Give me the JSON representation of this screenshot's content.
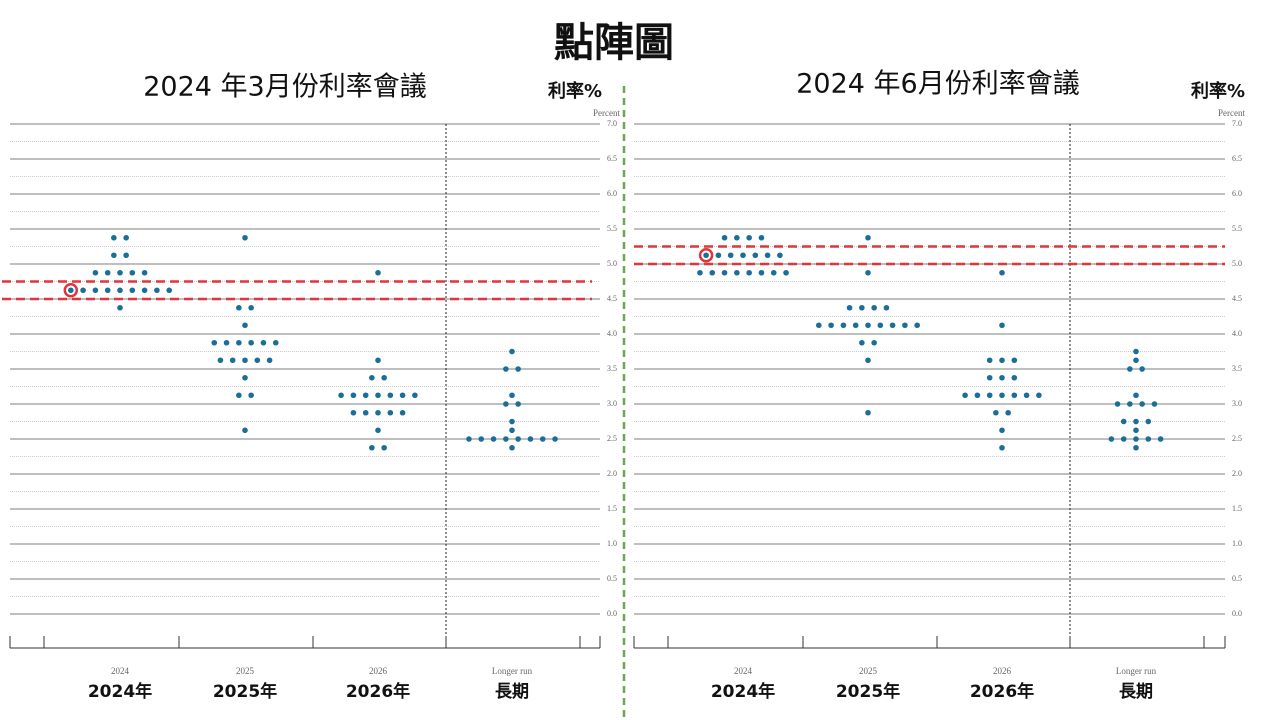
{
  "title": "點陣圖",
  "chart_data": [
    {
      "type": "dot",
      "title": "2024 年3月份利率會議",
      "ylabel": "利率%",
      "axis_label": "Percent",
      "categories": [
        "2024",
        "2025",
        "2026",
        "Longer run"
      ],
      "categories_zh": [
        "2024年",
        "2025年",
        "2026年",
        "長期"
      ],
      "color": "#1b6e98",
      "dots": [
        [
          5.375,
          5.375,
          5.125,
          5.125,
          4.875,
          4.875,
          4.875,
          4.875,
          4.875,
          4.625,
          4.625,
          4.625,
          4.625,
          4.625,
          4.625,
          4.625,
          4.625,
          4.625,
          4.375
        ],
        [
          5.375,
          4.375,
          4.375,
          4.125,
          3.875,
          3.875,
          3.875,
          3.875,
          3.875,
          3.875,
          3.625,
          3.625,
          3.625,
          3.625,
          3.625,
          3.375,
          3.125,
          3.125,
          2.625
        ],
        [
          4.875,
          3.625,
          3.375,
          3.375,
          3.125,
          3.125,
          3.125,
          3.125,
          3.125,
          3.125,
          3.125,
          2.875,
          2.875,
          2.875,
          2.875,
          2.875,
          2.625,
          2.375,
          2.375
        ],
        [
          3.75,
          3.5,
          3.5,
          3.125,
          3.0,
          3.0,
          2.75,
          2.625,
          2.5,
          2.5,
          2.5,
          2.5,
          2.5,
          2.5,
          2.5,
          2.5,
          2.375
        ]
      ],
      "highlight": {
        "category": 0,
        "value": 4.625
      },
      "reference_lines": [
        4.75,
        4.5
      ],
      "ylim": [
        0,
        7
      ],
      "yticks": [
        {
          "value": 0,
          "label": "0.0"
        },
        {
          "value": 0.5,
          "label": "0.5"
        },
        {
          "value": 1,
          "label": "1.0"
        },
        {
          "value": 1.5,
          "label": "1.5"
        },
        {
          "value": 2,
          "label": "2.0"
        },
        {
          "value": 2.5,
          "label": "2.5"
        },
        {
          "value": 3,
          "label": "3.0"
        },
        {
          "value": 3.5,
          "label": "3.5"
        },
        {
          "value": 4,
          "label": "4.0"
        },
        {
          "value": 4.5,
          "label": "4.5"
        },
        {
          "value": 5,
          "label": "5.0"
        },
        {
          "value": 5.5,
          "label": "5.5"
        },
        {
          "value": 6,
          "label": "6.0"
        },
        {
          "value": 6.5,
          "label": "6.5"
        },
        {
          "value": 7,
          "label": "7.0"
        }
      ],
      "grid": true
    },
    {
      "type": "dot",
      "title": "2024 年6月份利率會議",
      "ylabel": "利率%",
      "axis_label": "Percent",
      "categories": [
        "2024",
        "2025",
        "2026",
        "Longer run"
      ],
      "categories_zh": [
        "2024年",
        "2025年",
        "2026年",
        "長期"
      ],
      "color": "#1b6e98",
      "dots": [
        [
          5.375,
          5.375,
          5.375,
          5.375,
          5.125,
          5.125,
          5.125,
          5.125,
          5.125,
          5.125,
          5.125,
          4.875,
          4.875,
          4.875,
          4.875,
          4.875,
          4.875,
          4.875,
          4.875
        ],
        [
          5.375,
          4.875,
          4.375,
          4.375,
          4.375,
          4.375,
          4.125,
          4.125,
          4.125,
          4.125,
          4.125,
          4.125,
          4.125,
          4.125,
          4.125,
          3.875,
          3.875,
          3.625,
          2.875
        ],
        [
          4.875,
          4.125,
          3.625,
          3.625,
          3.625,
          3.375,
          3.375,
          3.375,
          3.125,
          3.125,
          3.125,
          3.125,
          3.125,
          3.125,
          3.125,
          2.875,
          2.875,
          2.625,
          2.375
        ],
        [
          3.75,
          3.625,
          3.5,
          3.5,
          3.125,
          3.0,
          3.0,
          3.0,
          3.0,
          2.75,
          2.75,
          2.75,
          2.625,
          2.5,
          2.5,
          2.5,
          2.5,
          2.5,
          2.375
        ]
      ],
      "highlight": {
        "category": 0,
        "value": 5.125
      },
      "reference_lines": [
        5.25,
        5.0
      ],
      "ylim": [
        0,
        7
      ],
      "yticks": [
        {
          "value": 0,
          "label": "0.0"
        },
        {
          "value": 0.5,
          "label": "0.5"
        },
        {
          "value": 1,
          "label": "1.0"
        },
        {
          "value": 1.5,
          "label": "1.5"
        },
        {
          "value": 2,
          "label": "2.0"
        },
        {
          "value": 2.5,
          "label": "2.5"
        },
        {
          "value": 3,
          "label": "3.0"
        },
        {
          "value": 3.5,
          "label": "3.5"
        },
        {
          "value": 4,
          "label": "4.0"
        },
        {
          "value": 4.5,
          "label": "4.5"
        },
        {
          "value": 5,
          "label": "5.0"
        },
        {
          "value": 5.5,
          "label": "5.5"
        },
        {
          "value": 6,
          "label": "6.0"
        },
        {
          "value": 6.5,
          "label": "6.5"
        },
        {
          "value": 7,
          "label": "7.0"
        }
      ],
      "grid": true
    }
  ]
}
